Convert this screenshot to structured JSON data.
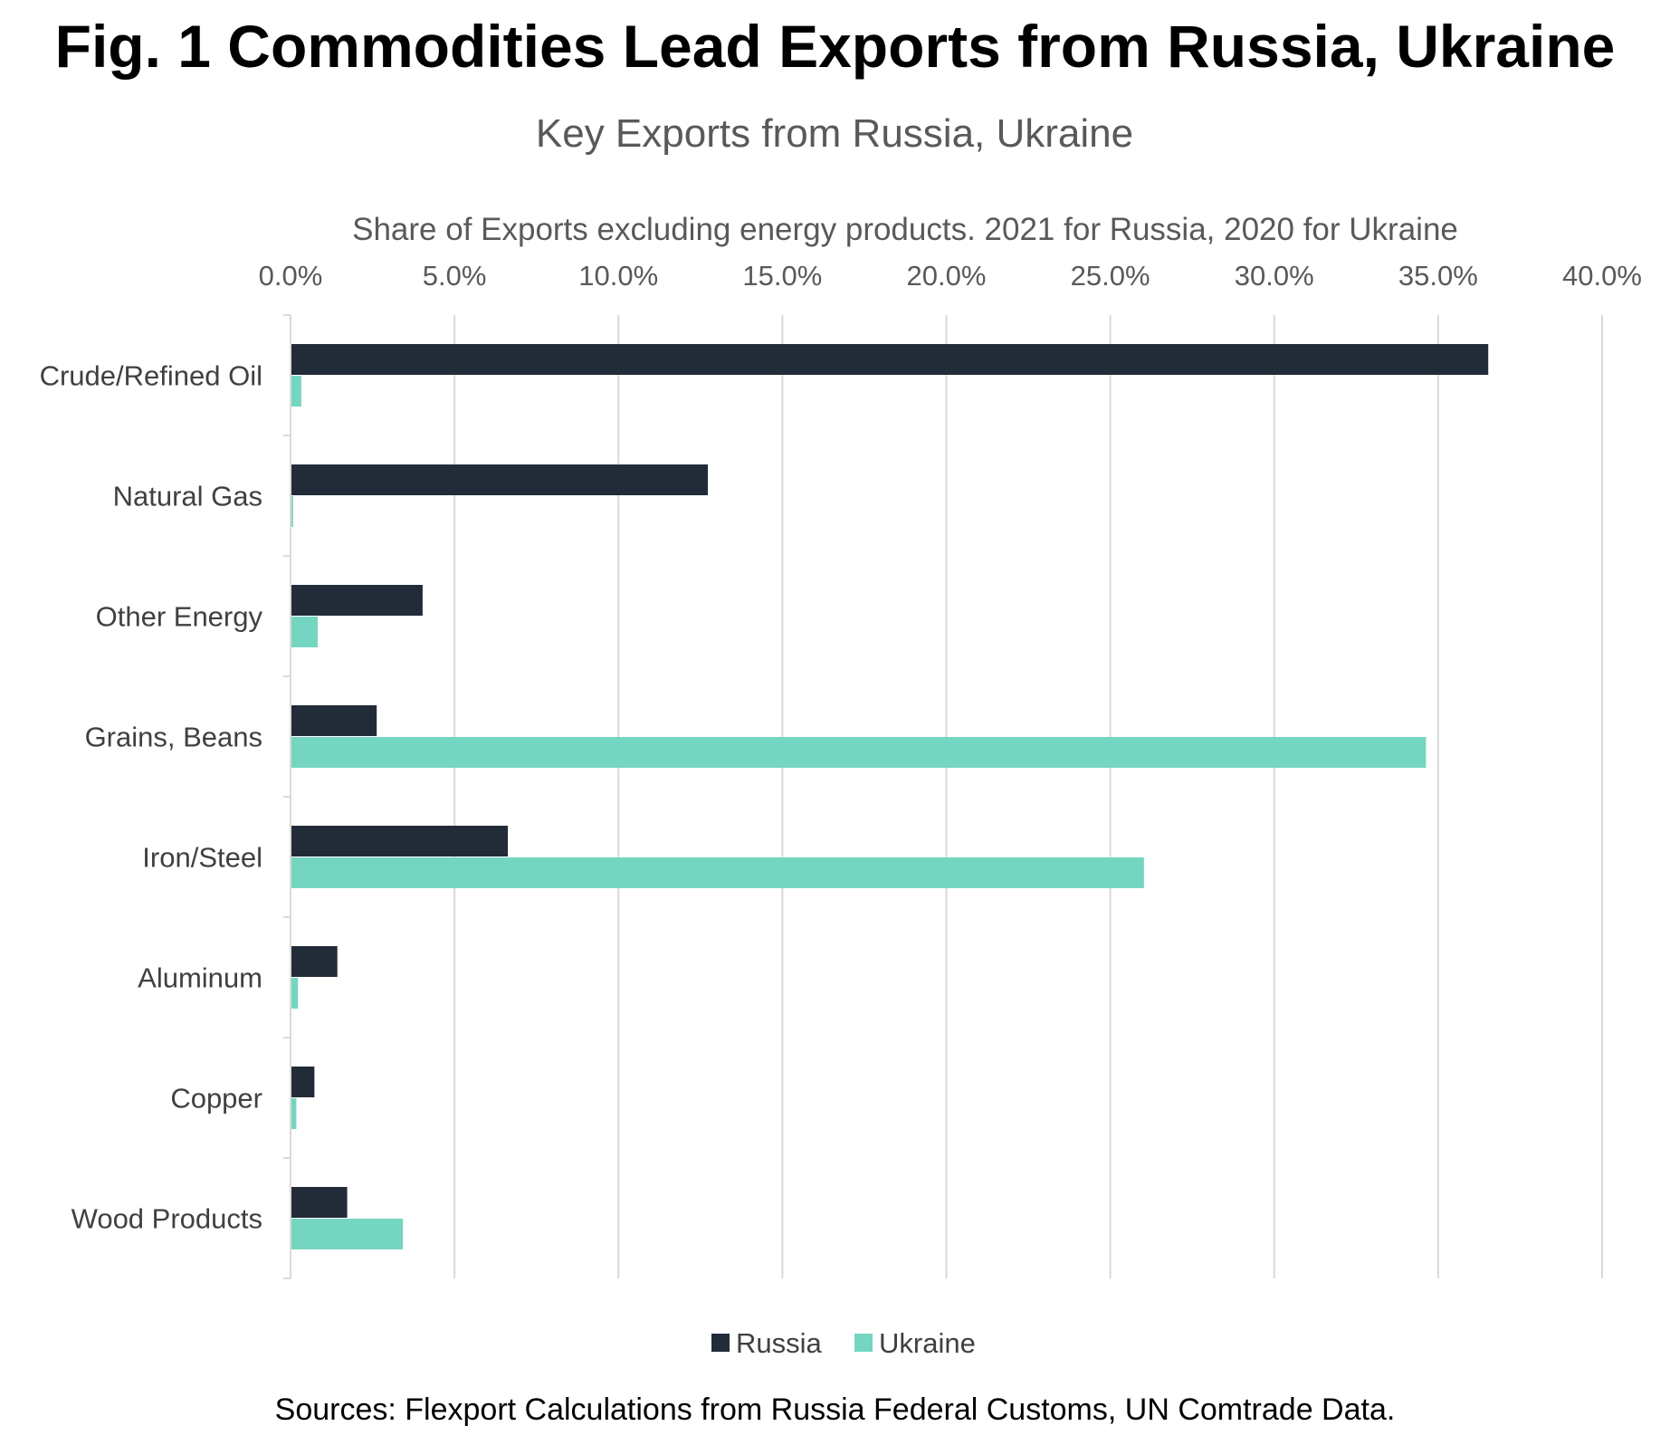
{
  "figure_title": "Fig. 1 Commodities Lead Exports from Russia, Ukraine",
  "source_note": "Sources: Flexport Calculations from Russia Federal Customs, UN Comtrade Data.",
  "chart_data": {
    "type": "bar",
    "orientation": "horizontal",
    "title": "Key Exports from Russia, Ukraine",
    "xlabel": "Share of Exports excluding energy products. 2021 for Russia, 2020 for Ukraine",
    "xaxis_position": "top",
    "xlim": [
      0,
      40
    ],
    "xticks": [
      0,
      5,
      10,
      15,
      20,
      25,
      30,
      35,
      40
    ],
    "xtick_labels": [
      "0.0%",
      "5.0%",
      "10.0%",
      "15.0%",
      "20.0%",
      "25.0%",
      "30.0%",
      "35.0%",
      "40.0%"
    ],
    "grid": "vertical",
    "legend_position": "bottom",
    "categories": [
      "Crude/Refined Oil",
      "Natural Gas",
      "Other Energy",
      "Grains, Beans",
      "Iron/Steel",
      "Aluminum",
      "Copper",
      "Wood Products"
    ],
    "series": [
      {
        "name": "Russia",
        "color": "#222b38",
        "values": [
          36.5,
          12.7,
          4.0,
          2.6,
          6.6,
          1.4,
          0.7,
          1.7
        ]
      },
      {
        "name": "Ukraine",
        "color": "#74d6c0",
        "values": [
          0.3,
          0.05,
          0.8,
          34.6,
          26.0,
          0.2,
          0.15,
          3.4
        ]
      }
    ]
  }
}
